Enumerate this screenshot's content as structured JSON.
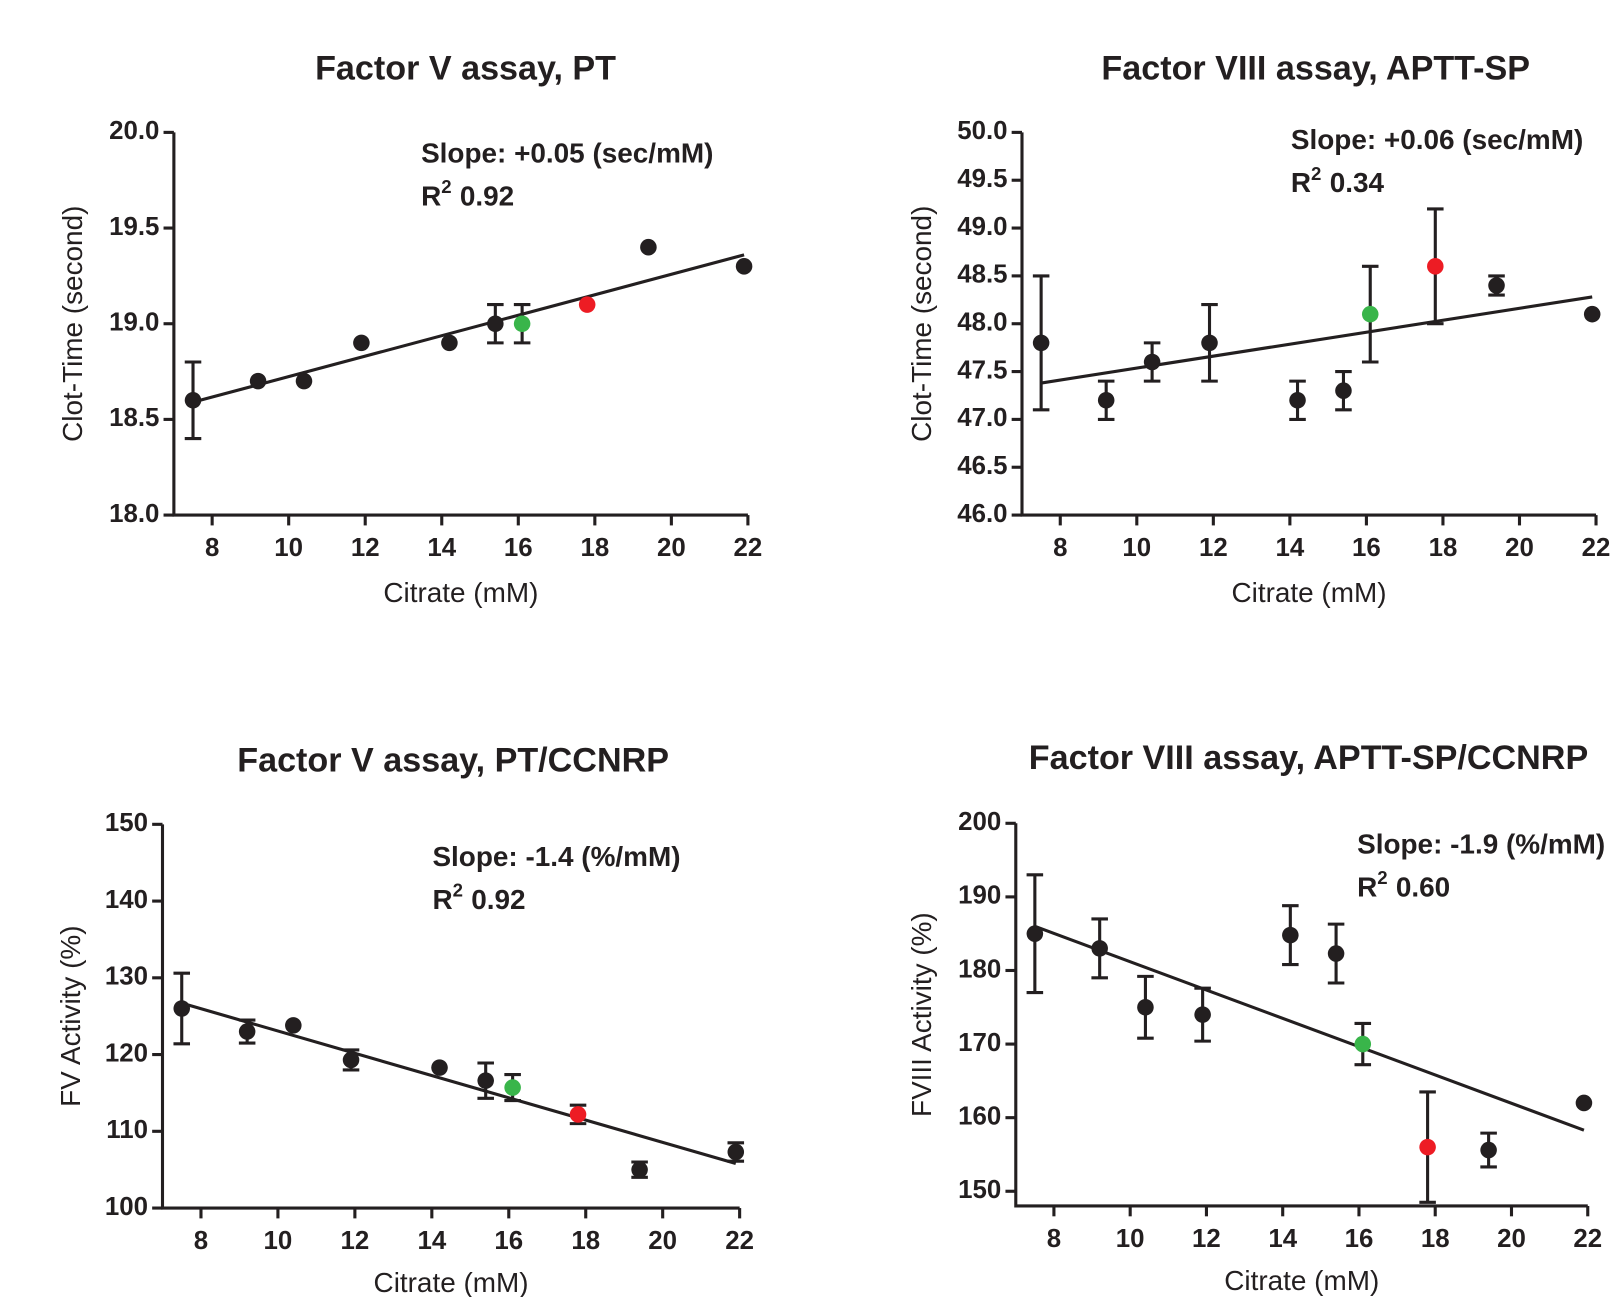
{
  "chart_data": [
    {
      "type": "scatter",
      "title": "Factor V assay, PT",
      "x_label": "Citrate (mM)",
      "y_label": "Clot-Time (second)",
      "annotation": {
        "slope": "Slope: +0.05 (sec/mM)",
        "r2_base": "R",
        "r2_sup": "2",
        "r2_value": "0.92"
      },
      "x": [
        7.5,
        9.2,
        10.4,
        11.9,
        14.2,
        15.4,
        16.1,
        17.8,
        19.4,
        21.9
      ],
      "values": [
        18.6,
        18.7,
        18.7,
        18.9,
        18.9,
        19.0,
        19.0,
        19.1,
        19.4,
        19.3
      ],
      "errors": [
        0.2,
        null,
        null,
        null,
        null,
        0.1,
        0.1,
        null,
        null,
        null
      ],
      "colors": [
        "#231f20",
        "#231f20",
        "#231f20",
        "#231f20",
        "#231f20",
        "#231f20",
        "#39b54a",
        "#ed1c24",
        "#231f20",
        "#231f20"
      ],
      "fit": {
        "x": [
          7.5,
          21.9
        ],
        "y": [
          18.59,
          19.36
        ]
      },
      "xlim": [
        7,
        22
      ],
      "xticks": [
        8,
        10,
        12,
        14,
        16,
        18,
        20,
        22
      ],
      "ylim": [
        18,
        20
      ],
      "yticks": [
        {
          "value": 18,
          "label": "18.0"
        },
        18.5,
        {
          "value": 19,
          "label": "19.0"
        },
        19.5,
        {
          "value": 20,
          "label": "20.0"
        }
      ]
    },
    {
      "type": "scatter",
      "title": "Factor VIII assay, APTT-SP",
      "x_label": "Citrate (mM)",
      "y_label": "Clot-Time (second)",
      "annotation": {
        "slope": "Slope: +0.06 (sec/mM)",
        "r2_base": "R",
        "r2_sup": "2",
        "r2_value": "0.34"
      },
      "x": [
        7.5,
        9.2,
        10.4,
        11.9,
        14.2,
        15.4,
        16.1,
        17.8,
        19.4,
        21.9
      ],
      "values": [
        47.8,
        47.2,
        47.6,
        47.8,
        47.2,
        47.3,
        48.1,
        48.6,
        48.4,
        48.1
      ],
      "errors": [
        0.7,
        0.2,
        0.2,
        0.4,
        0.2,
        0.2,
        0.5,
        0.6,
        0.1,
        null
      ],
      "colors": [
        "#231f20",
        "#231f20",
        "#231f20",
        "#231f20",
        "#231f20",
        "#231f20",
        "#39b54a",
        "#ed1c24",
        "#231f20",
        "#231f20"
      ],
      "fit": {
        "x": [
          7.5,
          21.9
        ],
        "y": [
          47.38,
          48.28
        ]
      },
      "xlim": [
        7,
        22
      ],
      "xticks": [
        8,
        10,
        12,
        14,
        16,
        18,
        20,
        22
      ],
      "ylim": [
        46,
        50
      ],
      "yticks": [
        {
          "value": 46,
          "label": "46.0"
        },
        46.5,
        {
          "value": 47,
          "label": "47.0"
        },
        47.5,
        {
          "value": 48,
          "label": "48.0"
        },
        48.5,
        {
          "value": 49,
          "label": "49.0"
        },
        49.5,
        {
          "value": 50,
          "label": "50.0"
        }
      ]
    },
    {
      "type": "scatter",
      "title": "Factor V assay, PT/CCNRP",
      "x_label": "Citrate (mM)",
      "y_label": "FV Activity (%)",
      "annotation": {
        "slope": "Slope: -1.4 (%/mM)",
        "r2_base": "R",
        "r2_sup": "2",
        "r2_value": "0.92"
      },
      "x": [
        7.5,
        9.2,
        10.4,
        11.9,
        14.2,
        15.4,
        16.1,
        17.8,
        19.4,
        21.9
      ],
      "values": [
        126,
        123,
        123.8,
        119.3,
        118.3,
        116.6,
        115.7,
        112.2,
        105,
        107.3
      ],
      "errors": [
        4.6,
        1.5,
        null,
        1.3,
        null,
        2.3,
        1.7,
        1.2,
        1,
        1.2
      ],
      "colors": [
        "#231f20",
        "#231f20",
        "#231f20",
        "#231f20",
        "#231f20",
        "#231f20",
        "#39b54a",
        "#ed1c24",
        "#231f20",
        "#231f20"
      ],
      "fit": {
        "x": [
          7.5,
          21.9
        ],
        "y": [
          126.7,
          105.8
        ]
      },
      "xlim": [
        7,
        22
      ],
      "xticks": [
        8,
        10,
        12,
        14,
        16,
        18,
        20,
        22
      ],
      "ylim": [
        100,
        150
      ],
      "yticks": [
        100,
        110,
        120,
        130,
        140,
        150
      ]
    },
    {
      "type": "scatter",
      "title": "Factor VIII assay, APTT-SP/CCNRP",
      "x_label": "Citrate (mM)",
      "y_label": "FVIII Activity (%)",
      "annotation": {
        "slope": "Slope: -1.9 (%/mM)",
        "r2_base": "R",
        "r2_sup": "2",
        "r2_value": "0.60"
      },
      "x": [
        7.5,
        9.2,
        10.4,
        11.9,
        14.2,
        15.4,
        16.1,
        17.8,
        19.4,
        21.9
      ],
      "values": [
        185,
        183,
        175,
        174,
        184.8,
        182.3,
        170,
        156,
        155.6,
        162
      ],
      "errors": [
        8,
        4,
        4.2,
        3.6,
        4,
        4,
        2.8,
        7.5,
        2.3,
        null
      ],
      "colors": [
        "#231f20",
        "#231f20",
        "#231f20",
        "#231f20",
        "#231f20",
        "#231f20",
        "#39b54a",
        "#ed1c24",
        "#231f20",
        "#231f20"
      ],
      "fit": {
        "x": [
          7.5,
          21.9
        ],
        "y": [
          186,
          158.3
        ]
      },
      "xlim": [
        7,
        22
      ],
      "xticks": [
        8,
        10,
        12,
        14,
        16,
        18,
        20,
        22
      ],
      "ylim": [
        148,
        200
      ],
      "yticks": [
        150,
        160,
        170,
        180,
        190,
        200
      ]
    }
  ]
}
